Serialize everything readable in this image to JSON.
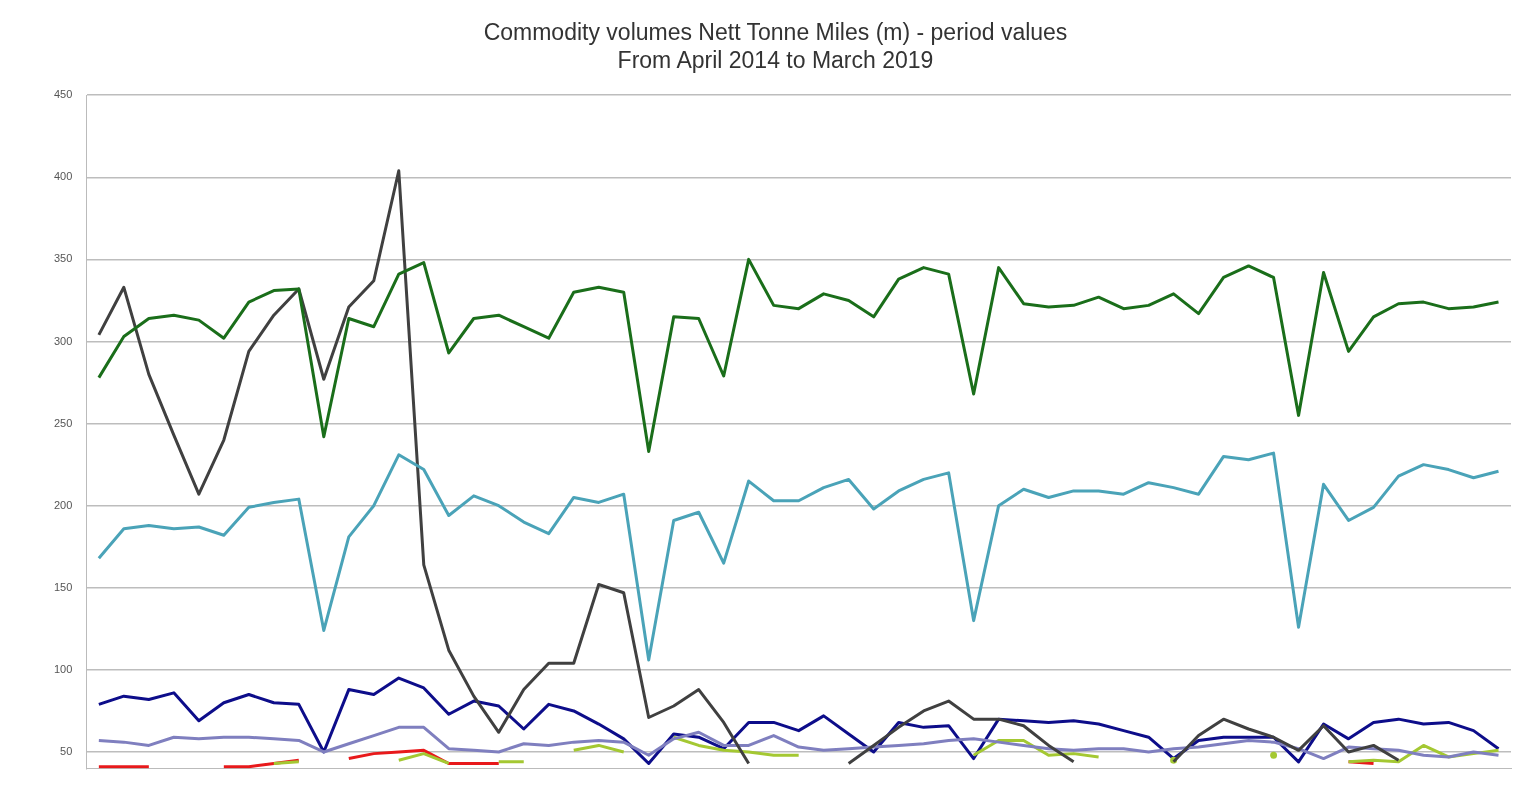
{
  "chart_data": {
    "type": "line",
    "title": [
      "Commodity volumes Nett Tonne Miles (m) - period values",
      "From April 2014 to March 2019"
    ],
    "categories": [
      null,
      null,
      null,
      null,
      null,
      null,
      null,
      null,
      null,
      null,
      null,
      null,
      null,
      null,
      null,
      null,
      null,
      null,
      null,
      null,
      null,
      null,
      null,
      null,
      null,
      null,
      null,
      null,
      null,
      null,
      null,
      null,
      null,
      null,
      null,
      null,
      null,
      null,
      null,
      null,
      null,
      null,
      null,
      null,
      null,
      null,
      null,
      null,
      null,
      null,
      null,
      null,
      null,
      null,
      null,
      null,
      null
    ],
    "ylim": [
      40,
      450
    ],
    "yticks": [
      50,
      100,
      150,
      200,
      250,
      300,
      350,
      400,
      450
    ],
    "grid": "y",
    "legend": false,
    "tick_labels": "y",
    "marker": "none",
    "line_style": "solid",
    "series": [
      {
        "color": "#1a6e1a",
        "values": [
          278,
          303,
          314,
          316,
          313,
          302,
          324,
          331,
          332,
          242,
          314,
          309,
          341,
          348,
          293,
          314,
          316,
          309,
          302,
          330,
          333,
          330,
          233,
          315,
          314,
          279,
          350,
          322,
          320,
          329,
          325,
          315,
          338,
          345,
          341,
          268,
          345,
          323,
          321,
          322,
          327,
          320,
          322,
          329,
          317,
          339,
          346,
          339,
          255,
          342,
          294,
          315,
          323,
          324,
          320,
          321,
          324
        ]
      },
      {
        "color": "#4aa3b8",
        "values": [
          168,
          186,
          188,
          186,
          187,
          182,
          199,
          202,
          204,
          124,
          181,
          200,
          231,
          222,
          194,
          206,
          200,
          190,
          183,
          205,
          202,
          207,
          106,
          191,
          196,
          165,
          215,
          203,
          203,
          211,
          216,
          198,
          209,
          216,
          220,
          130,
          200,
          210,
          205,
          209,
          209,
          207,
          214,
          211,
          207,
          230,
          228,
          232,
          126,
          213,
          191,
          199,
          218,
          225,
          222,
          217,
          221
        ]
      },
      {
        "color": "#404040",
        "values": [
          304,
          333,
          280,
          243,
          207,
          240,
          294,
          316,
          332,
          277,
          321,
          337,
          404,
          164,
          112,
          84,
          62,
          88,
          104,
          104,
          152,
          147,
          71,
          78,
          88,
          68,
          43,
          null,
          null,
          null,
          43,
          54,
          65,
          75,
          81,
          70,
          70,
          66,
          54,
          44,
          null,
          null,
          null,
          44,
          60,
          70,
          64,
          59,
          51,
          66,
          50,
          54,
          45,
          null,
          null,
          null,
          null
        ]
      },
      {
        "color": "#7f7fbf",
        "values": [
          57,
          56,
          54,
          59,
          58,
          59,
          59,
          58,
          57,
          50,
          55,
          60,
          65,
          65,
          52,
          51,
          50,
          55,
          54,
          56,
          57,
          56,
          48,
          58,
          62,
          54,
          54,
          60,
          53,
          51,
          52,
          53,
          54,
          55,
          57,
          58,
          56,
          54,
          52,
          51,
          52,
          52,
          50,
          52,
          53,
          55,
          57,
          56,
          52,
          46,
          53,
          52,
          51,
          48,
          47,
          50,
          48
        ]
      },
      {
        "color": "#a4c832",
        "values": [
          null,
          null,
          null,
          null,
          null,
          null,
          null,
          43,
          44,
          null,
          null,
          null,
          45,
          49,
          43,
          null,
          44,
          44,
          null,
          51,
          54,
          50,
          null,
          59,
          54,
          51,
          50,
          48,
          48,
          null,
          null,
          null,
          null,
          null,
          null,
          48,
          57,
          57,
          48,
          49,
          47,
          null,
          null,
          45,
          null,
          null,
          null,
          48,
          null,
          null,
          44,
          45,
          44,
          54,
          47,
          49,
          51
        ]
      },
      {
        "color": "#e8191b",
        "values": [
          41,
          41,
          41,
          null,
          null,
          41,
          41,
          43,
          45,
          null,
          46,
          49,
          50,
          51,
          43,
          43,
          43,
          null,
          null,
          null,
          null,
          null,
          null,
          null,
          null,
          null,
          null,
          null,
          null,
          null,
          null,
          null,
          null,
          null,
          null,
          null,
          null,
          null,
          null,
          null,
          null,
          null,
          null,
          null,
          null,
          null,
          null,
          null,
          null,
          null,
          44,
          43,
          null,
          null,
          null,
          null,
          null
        ]
      },
      {
        "color": "#0d0d8a",
        "values": [
          79,
          84,
          82,
          86,
          69,
          80,
          85,
          80,
          79,
          50,
          88,
          85,
          95,
          89,
          73,
          81,
          78,
          64,
          79,
          75,
          67,
          58,
          43,
          61,
          59,
          52,
          68,
          68,
          63,
          72,
          61,
          50,
          68,
          65,
          66,
          46,
          70,
          69,
          68,
          69,
          67,
          63,
          59,
          46,
          57,
          59,
          59,
          59,
          44,
          67,
          58,
          68,
          70,
          67,
          68,
          63,
          52
        ]
      }
    ]
  }
}
